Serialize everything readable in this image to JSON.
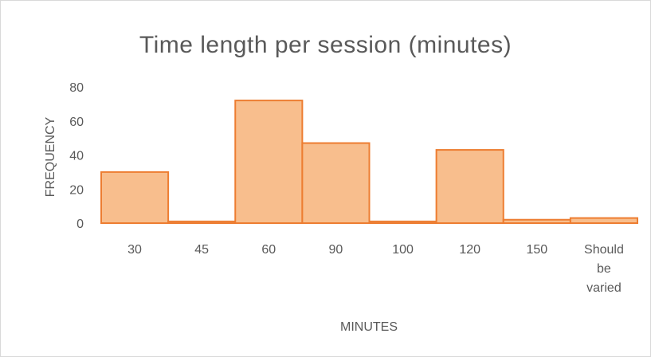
{
  "chart_data": {
    "type": "bar",
    "title": "Time length per session (minutes)",
    "xlabel": "MINUTES",
    "ylabel": "FREQUENCY",
    "categories": [
      "30",
      "45",
      "60",
      "90",
      "100",
      "120",
      "150",
      "Should be varied"
    ],
    "values": [
      30,
      1,
      72,
      47,
      1,
      43,
      2,
      3
    ],
    "ylim": [
      0,
      80
    ],
    "yticks": [
      "0",
      "20",
      "40",
      "60",
      "80"
    ],
    "grid": false,
    "legend": "none",
    "bar_fill": "#f8be8d",
    "bar_stroke": "#ed7d31"
  }
}
